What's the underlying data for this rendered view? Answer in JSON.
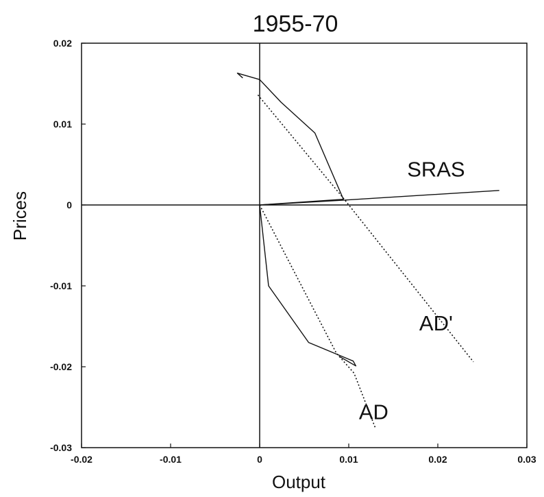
{
  "chart_data": {
    "type": "line",
    "title": "1955-70",
    "xlabel": "Output",
    "ylabel": "Prices",
    "xlim": [
      -0.02,
      0.03
    ],
    "ylim": [
      -0.03,
      0.02
    ],
    "x_ticks": [
      -0.02,
      -0.01,
      0,
      0.01,
      0.02,
      0.03
    ],
    "x_tick_labels": [
      "-0.02",
      "-0.01",
      "0",
      "0.01",
      "0.02",
      "0.03"
    ],
    "y_ticks": [
      -0.03,
      -0.02,
      -0.01,
      0,
      0.01,
      0.02
    ],
    "y_tick_labels": [
      "-0.03",
      "-0.02",
      "-0.01",
      "0",
      "0.01",
      "0.02"
    ],
    "grid": false,
    "zero_lines": true,
    "series": [
      {
        "style": "solid",
        "x": [
          0,
          0.0094,
          0.0062,
          0.0024,
          0,
          -0.0025,
          -0.0019
        ],
        "y": [
          0,
          0.0007,
          0.0089,
          0.0127,
          0.0155,
          0.0163,
          0.0157
        ]
      },
      {
        "style": "dotted",
        "x": [
          -0.0002,
          0.0095,
          0.024
        ],
        "y": [
          0.0136,
          0.0007,
          -0.0194
        ]
      },
      {
        "style": "solid",
        "x": [
          0,
          0.0095,
          0.0269
        ],
        "y": [
          0,
          0.0006,
          0.0018
        ]
      },
      {
        "style": "solid",
        "x": [
          0,
          0.001,
          0.0055,
          0.0105,
          0.0108,
          0.0089
        ],
        "y": [
          0,
          -0.01,
          -0.017,
          -0.0193,
          -0.0199,
          -0.0187
        ]
      },
      {
        "style": "dotted",
        "x": [
          0,
          0.0086,
          0.0106,
          0.013
        ],
        "y": [
          0,
          -0.0183,
          -0.0208,
          -0.0276
        ]
      }
    ],
    "annotations": [
      {
        "text": "SRAS",
        "x": 0.0198,
        "y": 0.0035
      },
      {
        "text": "AD'",
        "x": 0.0198,
        "y": -0.0155
      },
      {
        "text": "AD",
        "x": 0.0128,
        "y": -0.0265
      }
    ]
  }
}
